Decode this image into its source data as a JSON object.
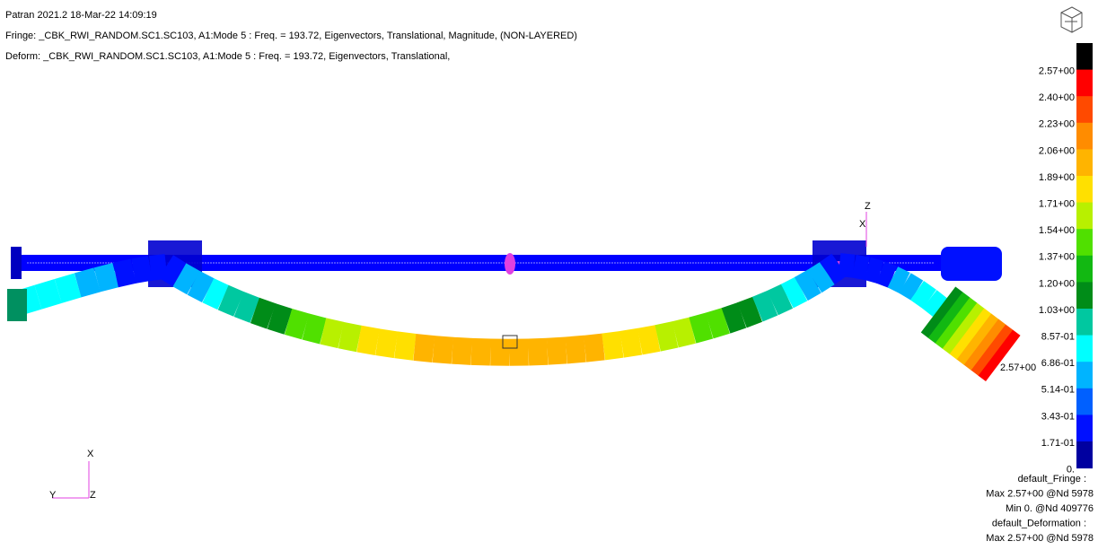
{
  "header": {
    "title": "Patran 2021.2 18-Mar-22 14:09:19",
    "fringe": "Fringe: _CBK_RWI_RANDOM.SC1.SC103, A1:Mode 5 : Freq. = 193.72, Eigenvectors, Translational, Magnitude, (NON-LAYERED)",
    "deform": "Deform: _CBK_RWI_RANDOM.SC1.SC103, A1:Mode 5 : Freq. = 193.72, Eigenvectors, Translational,"
  },
  "legend": {
    "labels": [
      "2.57+00",
      "2.40+00",
      "2.23+00",
      "2.06+00",
      "1.89+00",
      "1.71+00",
      "1.54+00",
      "1.37+00",
      "1.20+00",
      "1.03+00",
      "8.57-01",
      "6.86-01",
      "5.14-01",
      "3.43-01",
      "1.71-01",
      "0."
    ],
    "colors": [
      "#000000",
      "#ff0000",
      "#ff4a00",
      "#ff8c00",
      "#ffb400",
      "#ffe000",
      "#b8f000",
      "#50e000",
      "#12b812",
      "#008c18",
      "#00c8a0",
      "#00ffff",
      "#00b4ff",
      "#0060ff",
      "#0010ff",
      "#0000a0"
    ]
  },
  "max_label": "2.57+00",
  "summary": [
    "default_Fringe :",
    "Max 2.57+00 @Nd 5978",
    "Min  0. @Nd 409776",
    "default_Deformation :",
    "Max 2.57+00 @Nd 5978"
  ],
  "triad": {
    "x": "X",
    "y": "Y",
    "z": "Z"
  },
  "local_triad": {
    "z": "Z",
    "x": "X"
  }
}
